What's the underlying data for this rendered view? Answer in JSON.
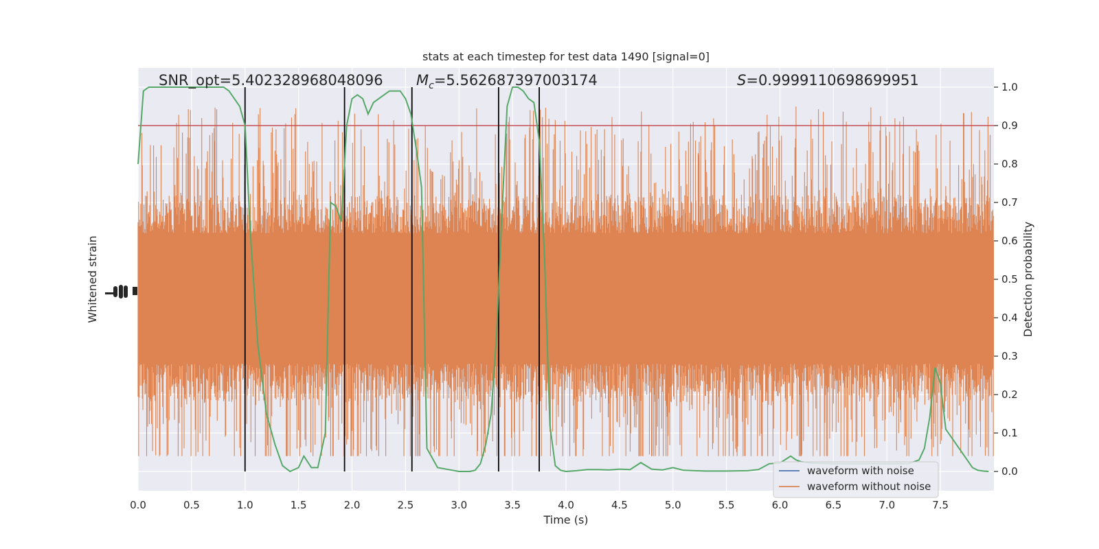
{
  "chart_data": {
    "type": "line",
    "title": "stats at each timestep for test data 1490 [signal=0]",
    "xlabel": "Time (s)",
    "ylabel_left": "Whitened strain",
    "ylabel_right": "Detection probability",
    "xlim": [
      0,
      8
    ],
    "ylim_right": [
      -0.05,
      1.05
    ],
    "x_ticks": [
      "0.0",
      "0.5",
      "1.0",
      "1.5",
      "2.0",
      "2.5",
      "3.0",
      "3.5",
      "4.0",
      "4.5",
      "5.0",
      "5.5",
      "6.0",
      "6.5",
      "7.0",
      "7.5"
    ],
    "y_ticks_right": [
      "0.0",
      "0.1",
      "0.2",
      "0.3",
      "0.4",
      "0.5",
      "0.6",
      "0.7",
      "0.8",
      "0.9",
      "1.0"
    ],
    "annotations": {
      "snr": "SNR_opt=5.402328968048096",
      "mc_symbol": "M",
      "mc_sub": "c",
      "mc_value": "=5.562687397003174",
      "s_symbol": "S",
      "s_value": "=0.9999110698699951"
    },
    "legend": {
      "position": "lower-right",
      "entries": [
        {
          "label": "waveform with noise",
          "color": "#4c72b0"
        },
        {
          "label": "waveform without noise",
          "color": "#dd8452"
        }
      ]
    },
    "threshold": {
      "value": 0.9,
      "color": "#c44e52"
    },
    "vertical_lines": [
      1.0,
      1.93,
      2.56,
      3.37,
      3.75
    ],
    "noise_band": {
      "color": "#dd8452",
      "center": 0.45,
      "dense_half_width": 0.15,
      "spike_min": 0.04,
      "spike_max": 1.0
    },
    "detection_probability": {
      "color": "#55a868",
      "x": [
        0.0,
        0.05,
        0.1,
        0.2,
        0.3,
        0.5,
        0.7,
        0.8,
        0.85,
        0.9,
        0.95,
        1.0,
        1.05,
        1.12,
        1.2,
        1.28,
        1.35,
        1.42,
        1.5,
        1.55,
        1.62,
        1.68,
        1.75,
        1.8,
        1.85,
        1.9,
        1.95,
        2.0,
        2.05,
        2.1,
        2.15,
        2.2,
        2.25,
        2.3,
        2.35,
        2.4,
        2.45,
        2.5,
        2.55,
        2.6,
        2.65,
        2.7,
        2.8,
        2.9,
        3.0,
        3.1,
        3.15,
        3.2,
        3.25,
        3.3,
        3.35,
        3.4,
        3.45,
        3.5,
        3.55,
        3.6,
        3.65,
        3.7,
        3.75,
        3.8,
        3.85,
        3.9,
        3.95,
        4.0,
        4.1,
        4.2,
        4.3,
        4.4,
        4.5,
        4.6,
        4.7,
        4.8,
        4.9,
        5.0,
        5.1,
        5.3,
        5.5,
        5.7,
        5.8,
        5.9,
        6.0,
        6.1,
        6.15,
        6.2,
        6.3,
        6.5,
        6.7,
        6.9,
        7.1,
        7.2,
        7.3,
        7.35,
        7.4,
        7.45,
        7.5,
        7.55,
        7.6,
        7.7,
        7.8,
        7.85,
        7.9,
        7.95
      ],
      "y": [
        0.8,
        0.99,
        1.0,
        1.0,
        1.0,
        1.0,
        1.0,
        1.0,
        0.99,
        0.97,
        0.95,
        0.9,
        0.62,
        0.33,
        0.15,
        0.07,
        0.015,
        0.0,
        0.01,
        0.04,
        0.01,
        0.01,
        0.1,
        0.7,
        0.69,
        0.65,
        0.9,
        0.97,
        0.98,
        0.97,
        0.93,
        0.96,
        0.97,
        0.98,
        0.99,
        0.99,
        0.99,
        0.97,
        0.93,
        0.84,
        0.74,
        0.06,
        0.01,
        0.005,
        0.0,
        0.0,
        0.003,
        0.02,
        0.07,
        0.15,
        0.35,
        0.66,
        0.95,
        1.0,
        1.0,
        0.99,
        0.97,
        0.96,
        0.86,
        0.55,
        0.12,
        0.015,
        0.003,
        0.0,
        0.002,
        0.005,
        0.005,
        0.004,
        0.006,
        0.005,
        0.023,
        0.006,
        0.004,
        0.01,
        0.003,
        0.001,
        0.001,
        0.002,
        0.005,
        0.02,
        0.022,
        0.04,
        0.03,
        0.025,
        0.022,
        0.02,
        0.02,
        0.02,
        0.02,
        0.02,
        0.03,
        0.06,
        0.14,
        0.27,
        0.23,
        0.11,
        0.09,
        0.05,
        0.01,
        0.003,
        0.001,
        0.0
      ]
    }
  }
}
